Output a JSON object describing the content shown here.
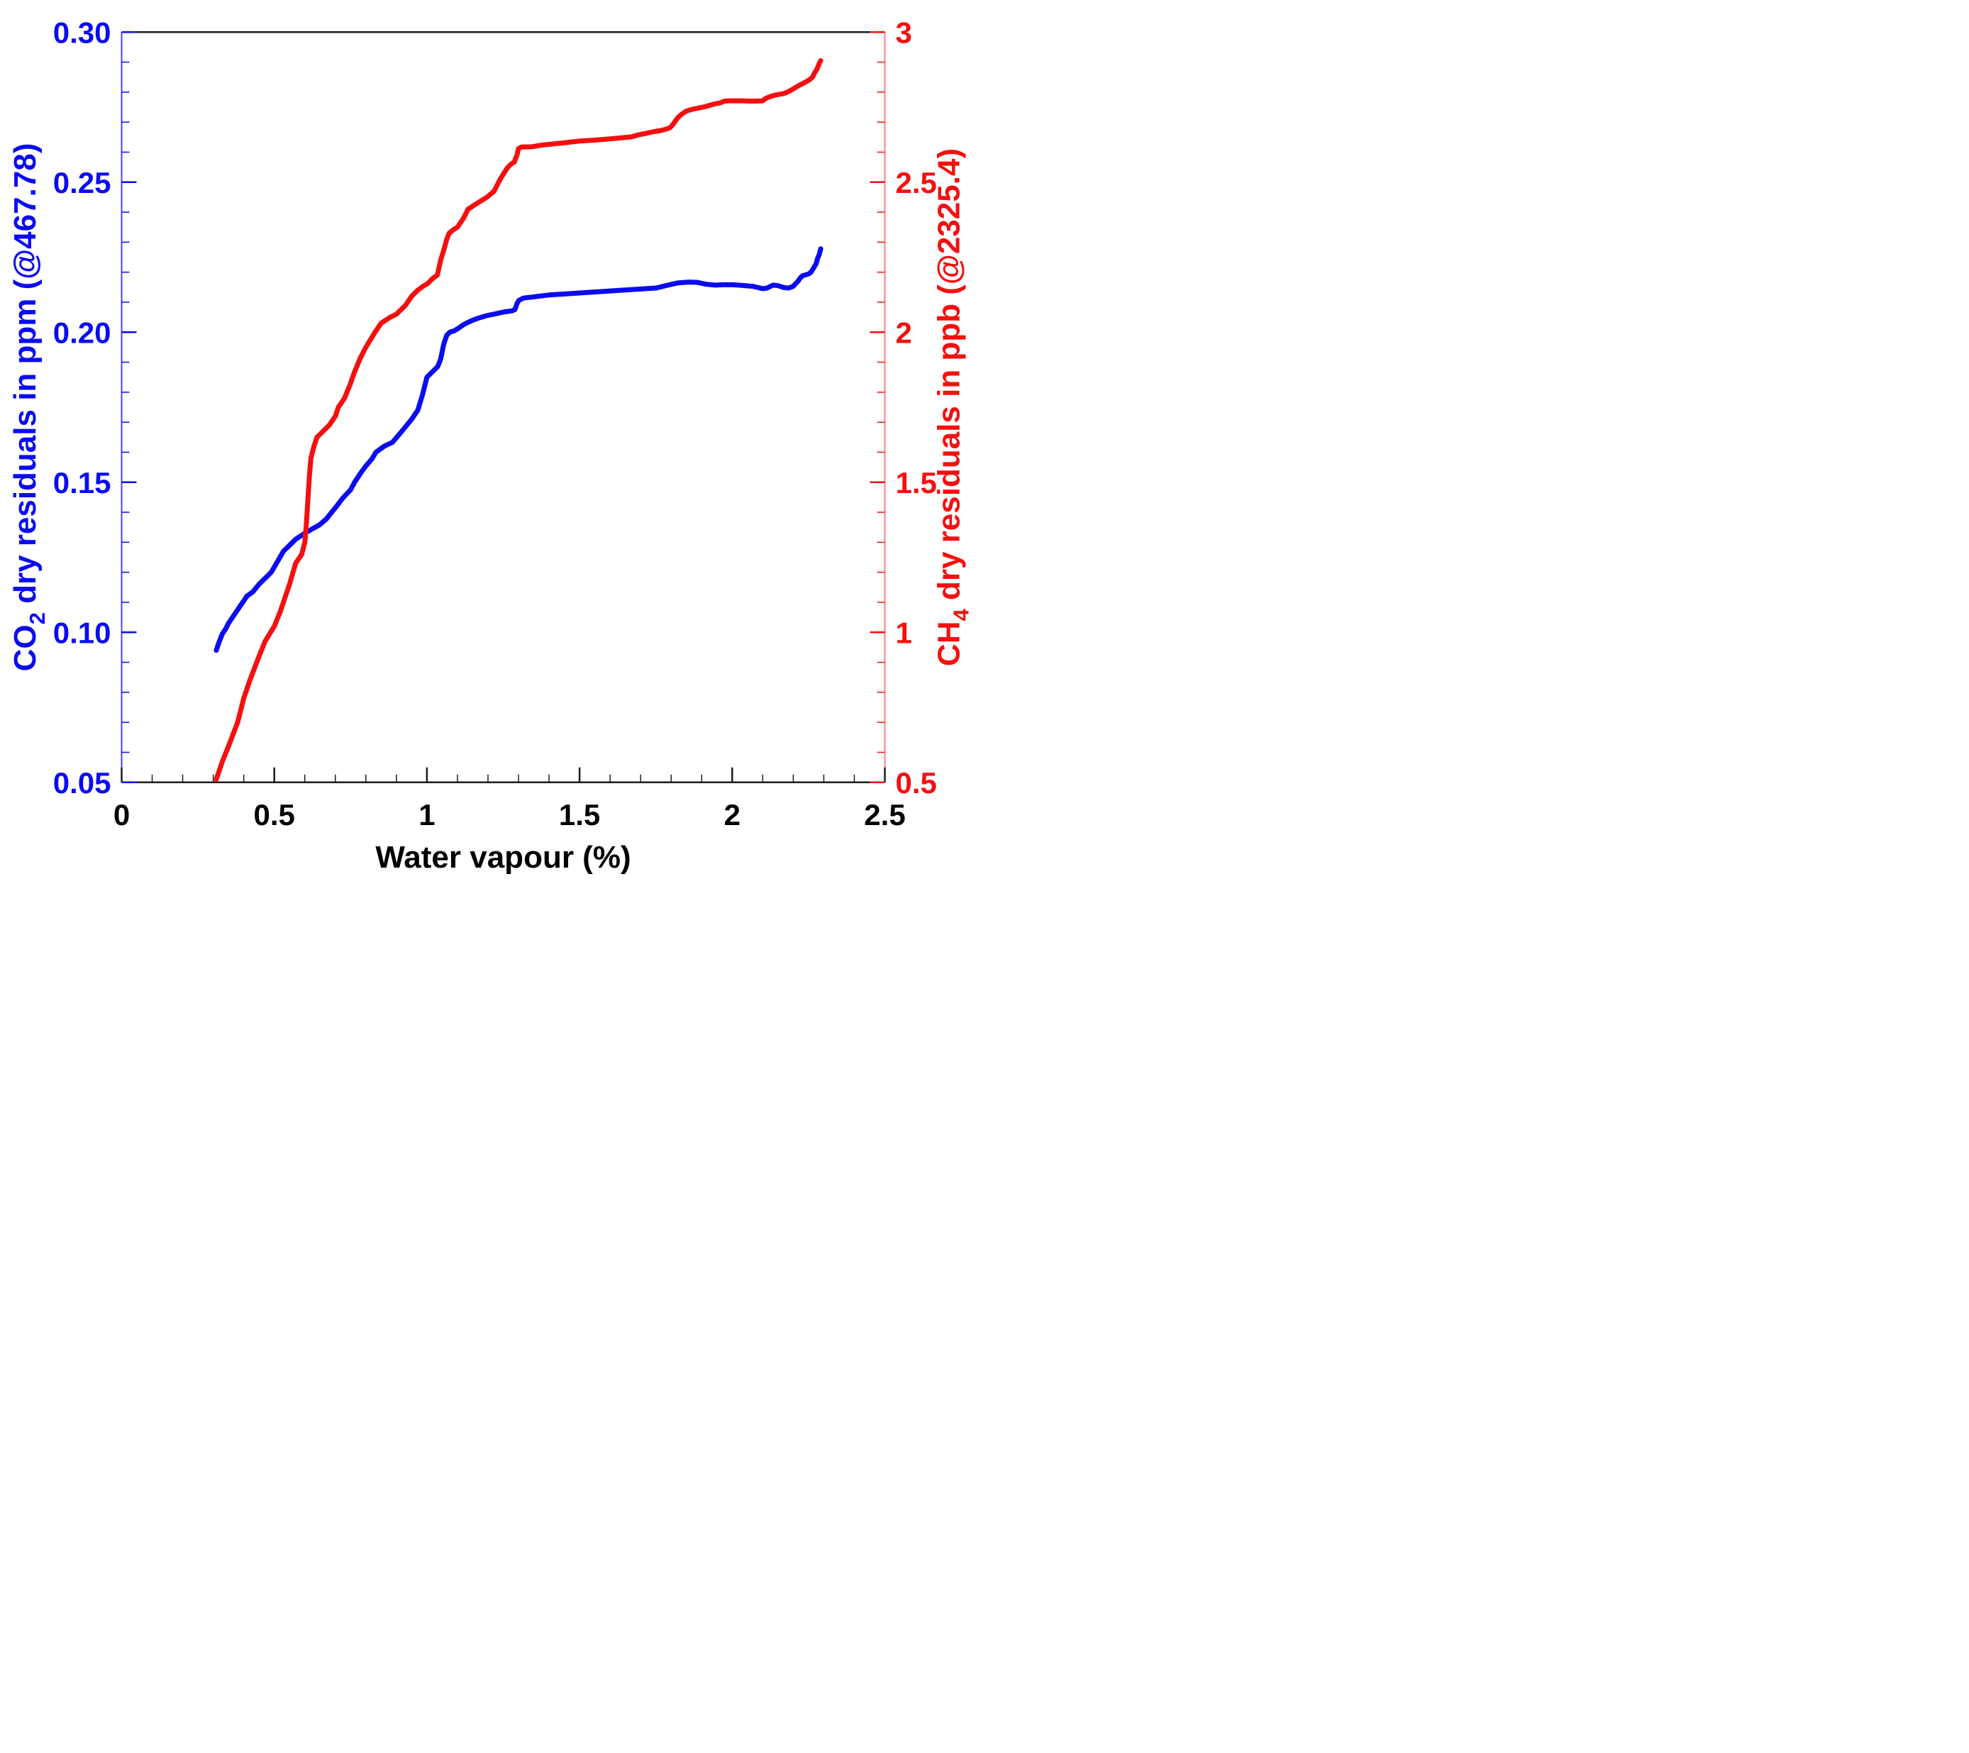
{
  "page": {
    "background": "#ffffff"
  },
  "chart_data": {
    "type": "line",
    "title": "",
    "xlabel": "Water vapour (%)",
    "grid": false,
    "legend": false,
    "frame_color": "#1c1c1c",
    "x_axis": {
      "range": [
        0,
        2.5
      ],
      "major_tick_values": [
        0,
        0.5,
        1,
        1.5,
        2,
        2.5
      ],
      "major_tick_labels": [
        "0",
        "0.5",
        "1",
        "1.5",
        "2",
        "2.5"
      ],
      "minor_step": 0.1,
      "tick_color": "#1c1c1c",
      "label_color": "#000000"
    },
    "left_axis": {
      "label_segments": [
        {
          "t": "CO",
          "sub": false
        },
        {
          "t": "2",
          "sub": true
        },
        {
          "t": " dry residuals in ppm (@467.78)",
          "sub": false
        }
      ],
      "range": [
        0.05,
        0.3
      ],
      "major_tick_values": [
        0.05,
        0.1,
        0.15,
        0.2,
        0.25,
        0.3
      ],
      "major_tick_labels": [
        "0.05",
        "0.10",
        "0.15",
        "0.20",
        "0.25",
        "0.30"
      ],
      "minor_step": 0.01,
      "color": "#0b0bf2",
      "spine_color": "#4343ee"
    },
    "right_axis": {
      "label_segments": [
        {
          "t": "CH",
          "sub": false
        },
        {
          "t": "4",
          "sub": true
        },
        {
          "t": " dry residuals in ppb (@2325.4)",
          "sub": false
        }
      ],
      "range": [
        0.5,
        3.0
      ],
      "major_tick_values": [
        0.5,
        1.0,
        1.5,
        2.0,
        2.5,
        3.0
      ],
      "major_tick_labels": [
        "0.5",
        "1",
        "1.5",
        "2",
        "2.5",
        "3"
      ],
      "minor_step": 0.1,
      "color": "#f50f0f",
      "spine_color": "#fb7d7d"
    },
    "series": [
      {
        "name": "CO2 dry residuals",
        "axis": "left",
        "color": "#0b0bf2",
        "width": 14,
        "points": [
          [
            0.31,
            0.094
          ],
          [
            0.32,
            0.097
          ],
          [
            0.33,
            0.0995
          ],
          [
            0.34,
            0.101
          ],
          [
            0.35,
            0.103
          ],
          [
            0.37,
            0.106
          ],
          [
            0.39,
            0.109
          ],
          [
            0.41,
            0.112
          ],
          [
            0.43,
            0.1135
          ],
          [
            0.45,
            0.116
          ],
          [
            0.47,
            0.118
          ],
          [
            0.49,
            0.12
          ],
          [
            0.51,
            0.1235
          ],
          [
            0.53,
            0.127
          ],
          [
            0.55,
            0.129
          ],
          [
            0.57,
            0.131
          ],
          [
            0.6,
            0.133
          ],
          [
            0.625,
            0.1345
          ],
          [
            0.647,
            0.1357
          ],
          [
            0.67,
            0.1377
          ],
          [
            0.685,
            0.1396
          ],
          [
            0.7,
            0.1415
          ],
          [
            0.725,
            0.1448
          ],
          [
            0.75,
            0.1475
          ],
          [
            0.763,
            0.15
          ],
          [
            0.786,
            0.1535
          ],
          [
            0.8,
            0.1554
          ],
          [
            0.82,
            0.1578
          ],
          [
            0.833,
            0.16
          ],
          [
            0.86,
            0.162
          ],
          [
            0.887,
            0.1633
          ],
          [
            0.918,
            0.167
          ],
          [
            0.95,
            0.171
          ],
          [
            0.97,
            0.174
          ],
          [
            0.985,
            0.179
          ],
          [
            1.0,
            0.185
          ],
          [
            1.02,
            0.187
          ],
          [
            1.035,
            0.1885
          ],
          [
            1.045,
            0.191
          ],
          [
            1.055,
            0.196
          ],
          [
            1.065,
            0.199
          ],
          [
            1.075,
            0.2
          ],
          [
            1.09,
            0.2005
          ],
          [
            1.103,
            0.2013
          ],
          [
            1.12,
            0.2025
          ],
          [
            1.135,
            0.2033
          ],
          [
            1.15,
            0.204
          ],
          [
            1.166,
            0.2046
          ],
          [
            1.185,
            0.2052
          ],
          [
            1.2,
            0.2056
          ],
          [
            1.224,
            0.2061
          ],
          [
            1.25,
            0.2067
          ],
          [
            1.278,
            0.2071
          ],
          [
            1.288,
            0.2075
          ],
          [
            1.295,
            0.2095
          ],
          [
            1.301,
            0.2106
          ],
          [
            1.317,
            0.2114
          ],
          [
            1.344,
            0.2117
          ],
          [
            1.4,
            0.2124
          ],
          [
            1.46,
            0.2128
          ],
          [
            1.52,
            0.2132
          ],
          [
            1.58,
            0.2136
          ],
          [
            1.64,
            0.214
          ],
          [
            1.7,
            0.2144
          ],
          [
            1.75,
            0.2147
          ],
          [
            1.79,
            0.2157
          ],
          [
            1.82,
            0.2164
          ],
          [
            1.858,
            0.2167
          ],
          [
            1.886,
            0.2166
          ],
          [
            1.913,
            0.216
          ],
          [
            1.944,
            0.2157
          ],
          [
            1.97,
            0.2158
          ],
          [
            2.0,
            0.2158
          ],
          [
            2.02,
            0.2157
          ],
          [
            2.044,
            0.2155
          ],
          [
            2.067,
            0.2153
          ],
          [
            2.1,
            0.2145
          ],
          [
            2.114,
            0.2147
          ],
          [
            2.134,
            0.2157
          ],
          [
            2.15,
            0.2155
          ],
          [
            2.168,
            0.2149
          ],
          [
            2.184,
            0.2147
          ],
          [
            2.2,
            0.2153
          ],
          [
            2.207,
            0.2161
          ],
          [
            2.215,
            0.2169
          ],
          [
            2.223,
            0.2181
          ],
          [
            2.23,
            0.2188
          ],
          [
            2.25,
            0.2194
          ],
          [
            2.258,
            0.22
          ],
          [
            2.265,
            0.2211
          ],
          [
            2.27,
            0.222
          ],
          [
            2.275,
            0.2228
          ],
          [
            2.28,
            0.2247
          ],
          [
            2.285,
            0.2258
          ],
          [
            2.29,
            0.2278
          ]
        ]
      },
      {
        "name": "CH4 dry residuals",
        "axis": "right",
        "color": "#f50f0f",
        "width": 14,
        "points": [
          [
            0.31,
            0.51
          ],
          [
            0.33,
            0.57
          ],
          [
            0.35,
            0.62
          ],
          [
            0.38,
            0.7
          ],
          [
            0.4,
            0.78
          ],
          [
            0.42,
            0.84
          ],
          [
            0.45,
            0.92
          ],
          [
            0.47,
            0.97
          ],
          [
            0.5,
            1.02
          ],
          [
            0.52,
            1.07
          ],
          [
            0.55,
            1.16
          ],
          [
            0.57,
            1.23
          ],
          [
            0.59,
            1.26
          ],
          [
            0.6,
            1.3
          ],
          [
            0.605,
            1.36
          ],
          [
            0.61,
            1.44
          ],
          [
            0.615,
            1.52
          ],
          [
            0.62,
            1.58
          ],
          [
            0.63,
            1.62
          ],
          [
            0.64,
            1.65
          ],
          [
            0.66,
            1.67
          ],
          [
            0.68,
            1.69
          ],
          [
            0.7,
            1.72
          ],
          [
            0.71,
            1.75
          ],
          [
            0.73,
            1.78
          ],
          [
            0.75,
            1.83
          ],
          [
            0.76,
            1.86
          ],
          [
            0.78,
            1.91
          ],
          [
            0.8,
            1.95
          ],
          [
            0.83,
            2.0
          ],
          [
            0.85,
            2.03
          ],
          [
            0.88,
            2.05
          ],
          [
            0.9,
            2.06
          ],
          [
            0.93,
            2.09
          ],
          [
            0.95,
            2.12
          ],
          [
            0.97,
            2.14
          ],
          [
            0.99,
            2.155
          ],
          [
            1.0,
            2.16
          ],
          [
            1.02,
            2.18
          ],
          [
            1.034,
            2.19
          ],
          [
            1.045,
            2.24
          ],
          [
            1.057,
            2.28
          ],
          [
            1.065,
            2.31
          ],
          [
            1.073,
            2.33
          ],
          [
            1.085,
            2.34
          ],
          [
            1.1,
            2.35
          ],
          [
            1.12,
            2.38
          ],
          [
            1.135,
            2.41
          ],
          [
            1.15,
            2.42
          ],
          [
            1.17,
            2.433
          ],
          [
            1.197,
            2.45
          ],
          [
            1.22,
            2.47
          ],
          [
            1.24,
            2.51
          ],
          [
            1.263,
            2.547
          ],
          [
            1.274,
            2.559
          ],
          [
            1.286,
            2.567
          ],
          [
            1.295,
            2.59
          ],
          [
            1.3,
            2.612
          ],
          [
            1.31,
            2.617
          ],
          [
            1.344,
            2.618
          ],
          [
            1.38,
            2.624
          ],
          [
            1.44,
            2.63
          ],
          [
            1.5,
            2.637
          ],
          [
            1.55,
            2.64
          ],
          [
            1.61,
            2.645
          ],
          [
            1.67,
            2.651
          ],
          [
            1.69,
            2.657
          ],
          [
            1.71,
            2.661
          ],
          [
            1.747,
            2.669
          ],
          [
            1.766,
            2.672
          ],
          [
            1.785,
            2.677
          ],
          [
            1.797,
            2.682
          ],
          [
            1.808,
            2.695
          ],
          [
            1.816,
            2.707
          ],
          [
            1.824,
            2.717
          ],
          [
            1.835,
            2.727
          ],
          [
            1.85,
            2.737
          ],
          [
            1.87,
            2.743
          ],
          [
            1.89,
            2.747
          ],
          [
            1.913,
            2.752
          ],
          [
            1.94,
            2.76
          ],
          [
            1.96,
            2.764
          ],
          [
            1.975,
            2.77
          ],
          [
            1.99,
            2.771
          ],
          [
            2.03,
            2.771
          ],
          [
            2.06,
            2.77
          ],
          [
            2.08,
            2.77
          ],
          [
            2.1,
            2.771
          ],
          [
            2.107,
            2.777
          ],
          [
            2.114,
            2.781
          ],
          [
            2.13,
            2.787
          ],
          [
            2.145,
            2.791
          ],
          [
            2.168,
            2.795
          ],
          [
            2.183,
            2.801
          ],
          [
            2.199,
            2.81
          ],
          [
            2.215,
            2.82
          ],
          [
            2.23,
            2.828
          ],
          [
            2.241,
            2.834
          ],
          [
            2.253,
            2.841
          ],
          [
            2.261,
            2.848
          ],
          [
            2.265,
            2.853
          ],
          [
            2.269,
            2.863
          ],
          [
            2.273,
            2.869
          ],
          [
            2.277,
            2.875
          ],
          [
            2.28,
            2.883
          ],
          [
            2.283,
            2.89
          ],
          [
            2.286,
            2.898
          ],
          [
            2.29,
            2.905
          ]
        ]
      }
    ]
  }
}
